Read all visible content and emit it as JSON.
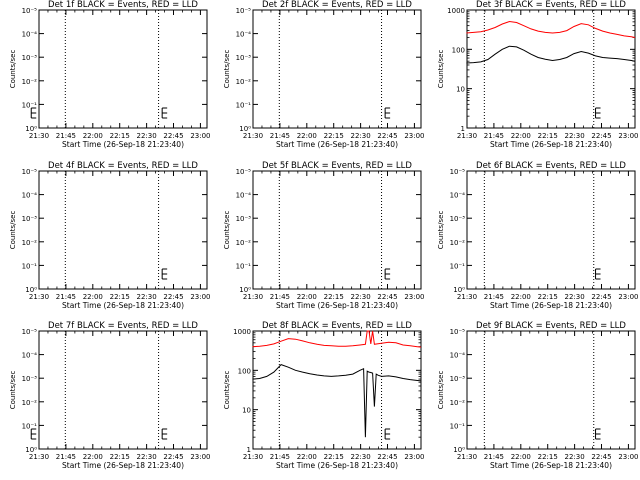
{
  "chart_data": [
    {
      "type": "line",
      "title": "Det 1f BLACK = Events, RED = LLD",
      "ylabel": "Counts/sec",
      "xlabel": "Start Time (26-Sep-18 21:23:40)",
      "yscale": "log",
      "ylim": [
        1,
        1000
      ],
      "ytick_labels": [
        "10⁰",
        "10⁻¹",
        "10⁻²",
        "10⁻³",
        "10⁻⁴",
        "10⁻⁵"
      ],
      "xtick_labels": [
        "21:30",
        "21:45",
        "22:00",
        "22:15",
        "22:30",
        "22:45",
        "23:00"
      ],
      "xlim_min": [
        6.33,
        100
      ],
      "xtick_min": [
        6.33,
        21.33,
        36.33,
        51.33,
        66.33,
        81.33,
        96.33
      ],
      "vlines_min": [
        21,
        73
      ],
      "e_marker_min": [
        2,
        75
      ],
      "series": []
    },
    {
      "type": "line",
      "title": "Det 2f BLACK = Events, RED = LLD",
      "ylabel": "Counts/sec",
      "xlabel": "Start Time (26-Sep-18 21:23:40)",
      "yscale": "log",
      "ylim": [
        1,
        1000
      ],
      "ytick_labels": [
        "10⁰",
        "10⁻¹",
        "10⁻²",
        "10⁻³",
        "10⁻⁴",
        "10⁻⁵"
      ],
      "xtick_labels": [
        "21:30",
        "21:45",
        "22:00",
        "22:15",
        "22:30",
        "22:45",
        "23:00"
      ],
      "xlim_min": [
        6.33,
        100
      ],
      "xtick_min": [
        6.33,
        21.33,
        36.33,
        51.33,
        66.33,
        81.33,
        96.33
      ],
      "vlines_min": [
        21,
        78
      ],
      "e_marker_min": [
        80
      ],
      "series": []
    },
    {
      "type": "line",
      "title": "Det 3f BLACK = Events, RED = LLD",
      "ylabel": "Counts/sec",
      "xlabel": "Start Time (26-Sep-18 21:23:40)",
      "yscale": "log",
      "ylim": [
        1,
        1000
      ],
      "ytick_labels": [
        "1",
        "10",
        "100",
        "1000"
      ],
      "ytick_values": [
        1,
        10,
        100,
        1000
      ],
      "xtick_labels": [
        "21:30",
        "21:45",
        "22:00",
        "22:15",
        "22:30",
        "22:45",
        "23:00"
      ],
      "xlim_min": [
        6.33,
        100
      ],
      "xtick_min": [
        6.33,
        21.33,
        36.33,
        51.33,
        66.33,
        81.33,
        96.33
      ],
      "vlines_min": [
        16,
        77
      ],
      "e_marker_min": [
        78
      ],
      "series": [
        {
          "color": "#ff0000",
          "x": [
            6,
            10,
            14,
            18,
            22,
            26,
            30,
            34,
            38,
            42,
            46,
            50,
            54,
            58,
            62,
            66,
            70,
            74,
            78,
            82,
            86,
            90,
            94,
            98,
            100
          ],
          "y": [
            260,
            270,
            280,
            310,
            360,
            440,
            510,
            480,
            400,
            330,
            290,
            270,
            260,
            270,
            300,
            380,
            450,
            420,
            340,
            290,
            260,
            240,
            220,
            210,
            200
          ]
        },
        {
          "color": "#000000",
          "x": [
            6,
            10,
            14,
            18,
            22,
            26,
            30,
            34,
            38,
            42,
            46,
            50,
            54,
            58,
            62,
            66,
            70,
            74,
            78,
            82,
            86,
            90,
            94,
            98,
            100
          ],
          "y": [
            45,
            46,
            48,
            55,
            75,
            100,
            120,
            115,
            95,
            75,
            62,
            56,
            52,
            55,
            62,
            78,
            88,
            80,
            68,
            62,
            60,
            58,
            55,
            52,
            50
          ]
        }
      ]
    },
    {
      "type": "line",
      "title": "Det 4f BLACK = Events, RED = LLD",
      "ylabel": "Counts/sec",
      "xlabel": "Start Time (26-Sep-18 21:23:40)",
      "yscale": "log",
      "ylim": [
        1,
        1000
      ],
      "ytick_labels": [
        "10⁰",
        "10⁻¹",
        "10⁻²",
        "10⁻³",
        "10⁻⁴",
        "10⁻⁵"
      ],
      "xtick_labels": [
        "21:30",
        "21:45",
        "22:00",
        "22:15",
        "22:30",
        "22:45",
        "23:00"
      ],
      "xlim_min": [
        6.33,
        100
      ],
      "xtick_min": [
        6.33,
        21.33,
        36.33,
        51.33,
        66.33,
        81.33,
        96.33
      ],
      "vlines_min": [
        21,
        73
      ],
      "e_marker_min": [
        75
      ],
      "series": []
    },
    {
      "type": "line",
      "title": "Det 5f BLACK = Events, RED = LLD",
      "ylabel": "Counts/sec",
      "xlabel": "Start Time (26-Sep-18 21:23:40)",
      "yscale": "log",
      "ylim": [
        1,
        1000
      ],
      "ytick_labels": [
        "10⁰",
        "10⁻¹",
        "10⁻²",
        "10⁻³",
        "10⁻⁴",
        "10⁻⁵"
      ],
      "xtick_labels": [
        "21:30",
        "21:45",
        "22:00",
        "22:15",
        "22:30",
        "22:45",
        "23:00"
      ],
      "xlim_min": [
        6.33,
        100
      ],
      "xtick_min": [
        6.33,
        21.33,
        36.33,
        51.33,
        66.33,
        81.33,
        96.33
      ],
      "vlines_min": [
        21,
        78
      ],
      "e_marker_min": [
        80
      ],
      "series": []
    },
    {
      "type": "line",
      "title": "Det 6f BLACK = Events, RED = LLD",
      "ylabel": "Counts/sec",
      "xlabel": "Start Time (26-Sep-18 21:23:40)",
      "yscale": "log",
      "ylim": [
        1,
        1000
      ],
      "ytick_labels": [
        "10⁰",
        "10⁻¹",
        "10⁻²",
        "10⁻³",
        "10⁻⁴",
        "10⁻⁵"
      ],
      "xtick_labels": [
        "21:30",
        "21:45",
        "22:00",
        "22:15",
        "22:30",
        "22:45",
        "23:00"
      ],
      "xlim_min": [
        6.33,
        100
      ],
      "xtick_min": [
        6.33,
        21.33,
        36.33,
        51.33,
        66.33,
        81.33,
        96.33
      ],
      "vlines_min": [
        16,
        77
      ],
      "e_marker_min": [
        78
      ],
      "series": []
    },
    {
      "type": "line",
      "title": "Det 7f BLACK = Events, RED = LLD",
      "ylabel": "Counts/sec",
      "xlabel": "Start Time (26-Sep-18 21:23:40)",
      "yscale": "log",
      "ylim": [
        1,
        1000
      ],
      "ytick_labels": [
        "10⁰",
        "10⁻¹",
        "10⁻²",
        "10⁻³",
        "10⁻⁴",
        "10⁻⁵"
      ],
      "xtick_labels": [
        "21:30",
        "21:45",
        "22:00",
        "22:15",
        "22:30",
        "22:45",
        "23:00"
      ],
      "xlim_min": [
        6.33,
        100
      ],
      "xtick_min": [
        6.33,
        21.33,
        36.33,
        51.33,
        66.33,
        81.33,
        96.33
      ],
      "vlines_min": [
        21,
        73
      ],
      "e_marker_min": [
        2,
        75
      ],
      "series": []
    },
    {
      "type": "line",
      "title": "Det 8f BLACK = Events, RED = LLD",
      "ylabel": "Counts/sec",
      "xlabel": "Start Time (26-Sep-18 21:23:40)",
      "yscale": "log",
      "ylim": [
        1,
        1000
      ],
      "ytick_labels": [
        "1",
        "10",
        "100",
        "1000"
      ],
      "ytick_values": [
        1,
        10,
        100,
        1000
      ],
      "xtick_labels": [
        "21:30",
        "21:45",
        "22:00",
        "22:15",
        "22:30",
        "22:45",
        "23:00"
      ],
      "xlim_min": [
        6.33,
        100
      ],
      "xtick_min": [
        6.33,
        21.33,
        36.33,
        51.33,
        66.33,
        81.33,
        96.33
      ],
      "vlines_min": [
        21,
        78
      ],
      "e_marker_min": [
        80
      ],
      "series": [
        {
          "color": "#ff0000",
          "x": [
            6,
            10,
            14,
            18,
            22,
            26,
            30,
            34,
            38,
            42,
            46,
            50,
            54,
            58,
            62,
            66,
            69,
            70,
            71,
            72,
            73,
            74,
            78,
            82,
            86,
            90,
            94,
            98,
            100
          ],
          "y": [
            400,
            410,
            430,
            470,
            550,
            640,
            620,
            560,
            500,
            460,
            430,
            420,
            410,
            410,
            420,
            440,
            460,
            1000,
            1000,
            470,
            1000,
            460,
            490,
            520,
            500,
            440,
            420,
            400,
            390
          ]
        },
        {
          "color": "#000000",
          "x": [
            6,
            10,
            14,
            18,
            22,
            26,
            30,
            34,
            38,
            42,
            46,
            50,
            54,
            58,
            62,
            66,
            68,
            69,
            70,
            71,
            72,
            73,
            74,
            75,
            76,
            78,
            82,
            86,
            90,
            94,
            98,
            100
          ],
          "y": [
            60,
            62,
            70,
            90,
            140,
            120,
            100,
            90,
            82,
            76,
            72,
            70,
            72,
            75,
            80,
            100,
            110,
            2,
            95,
            90,
            88,
            85,
            12,
            80,
            75,
            70,
            72,
            68,
            62,
            58,
            55,
            54
          ]
        }
      ]
    },
    {
      "type": "line",
      "title": "Det 9f BLACK = Events, RED = LLD",
      "ylabel": "Counts/sec",
      "xlabel": "Start Time (26-Sep-18 21:23:40)",
      "yscale": "log",
      "ylim": [
        1,
        1000
      ],
      "ytick_labels": [
        "10⁰",
        "10⁻¹",
        "10⁻²",
        "10⁻³",
        "10⁻⁴",
        "10⁻⁵"
      ],
      "xtick_labels": [
        "21:30",
        "21:45",
        "22:00",
        "22:15",
        "22:30",
        "22:45",
        "23:00"
      ],
      "xlim_min": [
        6.33,
        100
      ],
      "xtick_min": [
        6.33,
        21.33,
        36.33,
        51.33,
        66.33,
        81.33,
        96.33
      ],
      "vlines_min": [
        16,
        77
      ],
      "e_marker_min": [
        78
      ],
      "series": []
    }
  ]
}
